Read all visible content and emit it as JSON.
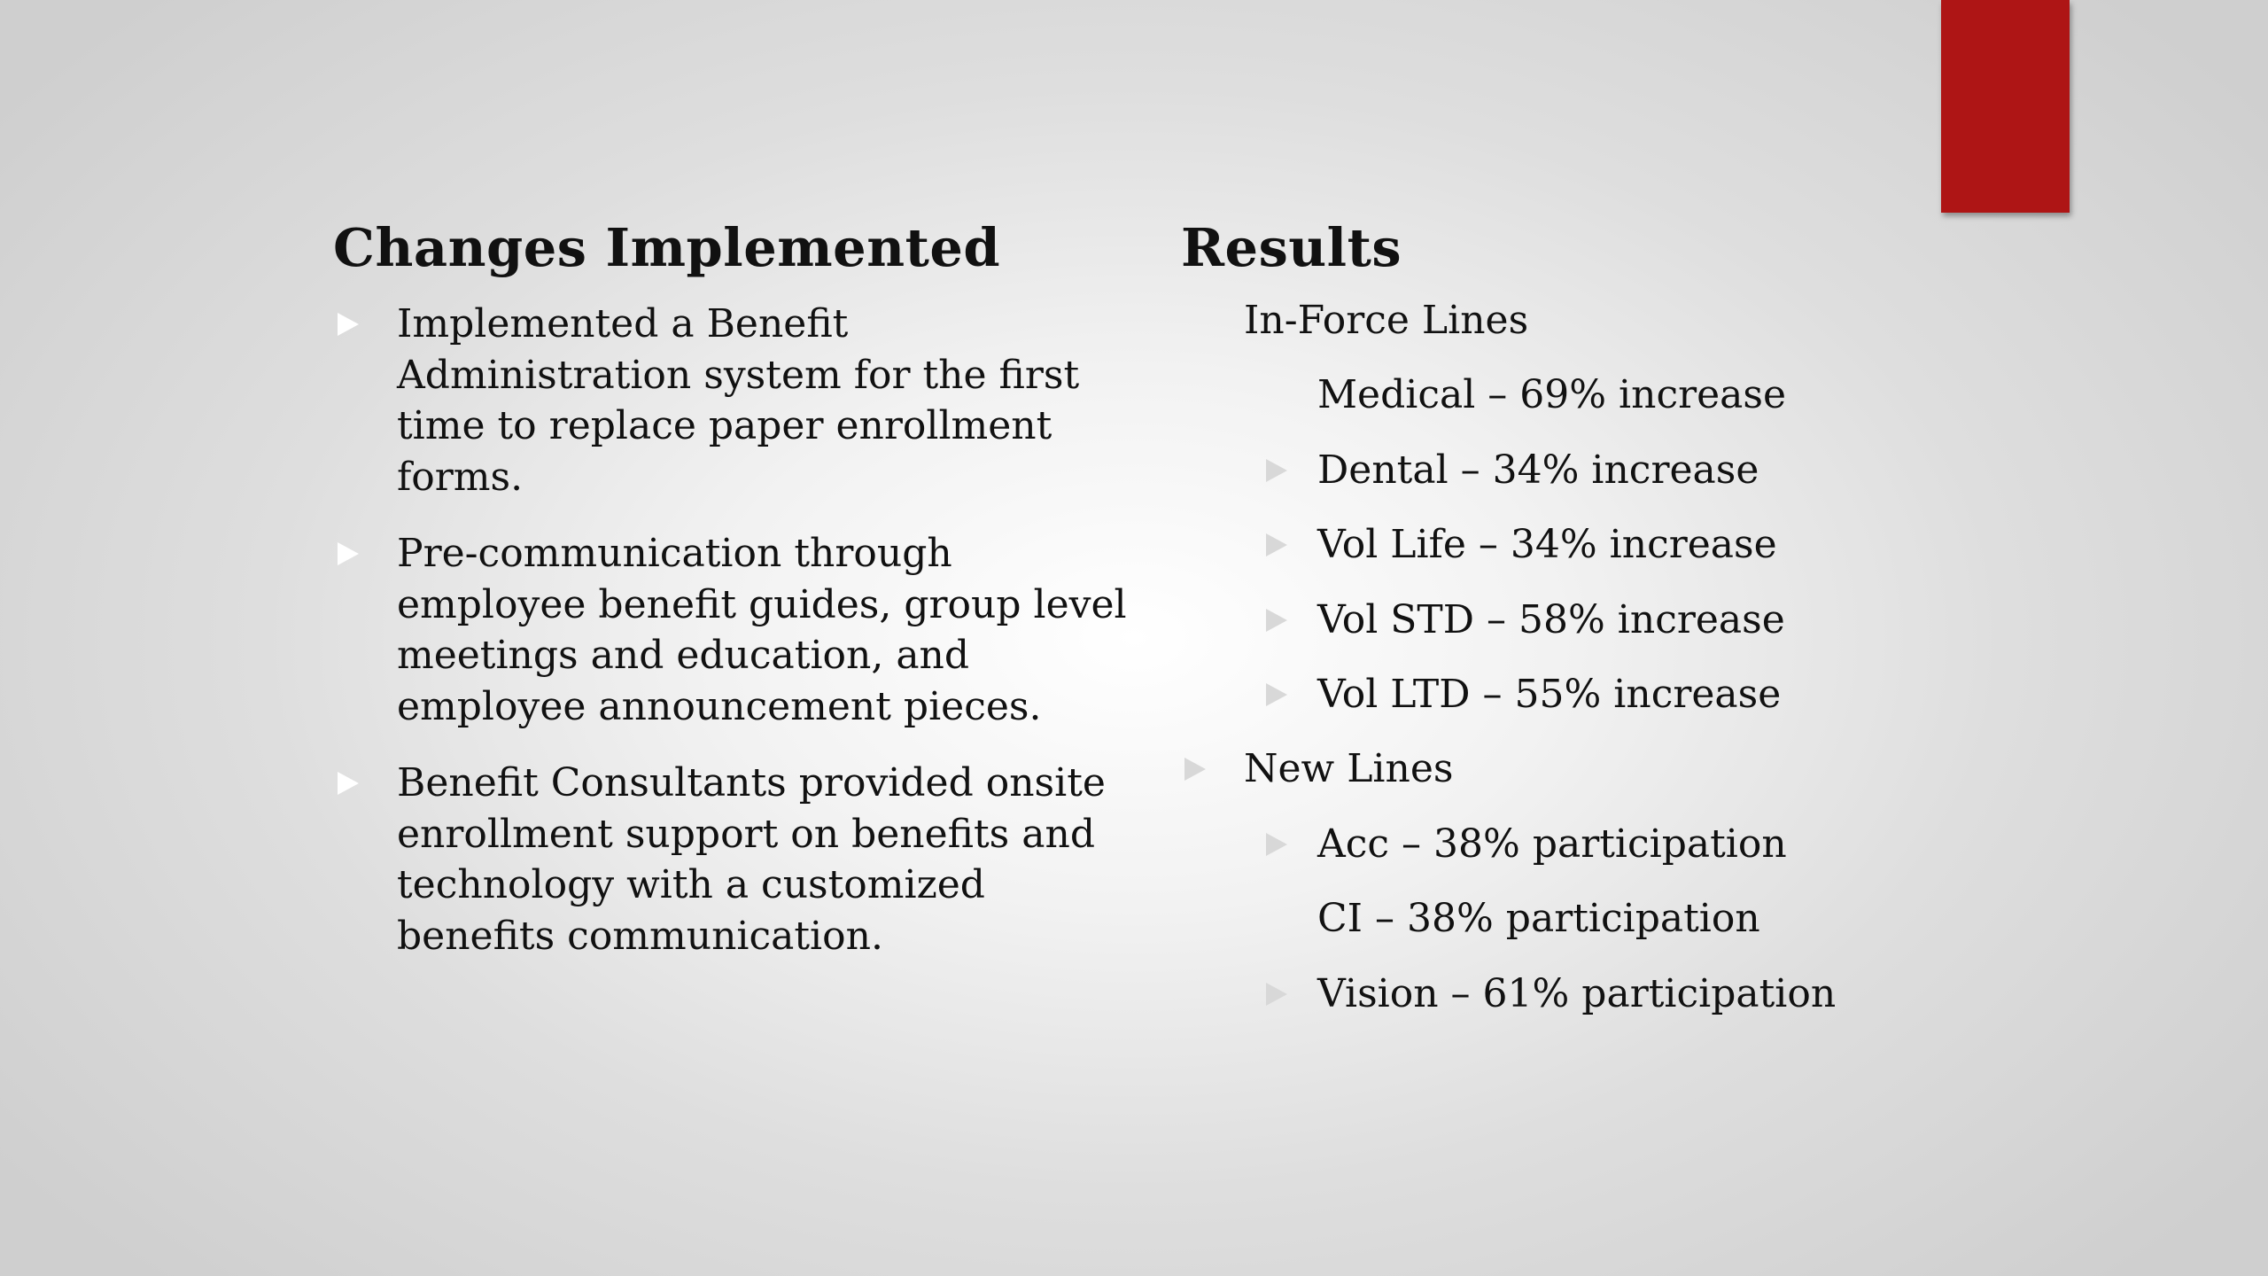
{
  "colors": {
    "accent": "#ae1515",
    "bullet_left": "#ffffff",
    "bullet_right": "#d8d8d8",
    "text": "#111111"
  },
  "left_column": {
    "heading": "Changes Implemented",
    "bullets": [
      "Implemented a Benefit Administration system for the first time to replace paper enrollment forms.",
      "Pre-communication through employee benefit guides, group level meetings and education, and employee announcement pieces.",
      "Benefit Consultants provided onsite enrollment support on benefits and technology with a customized benefits communication."
    ]
  },
  "right_column": {
    "heading": "Results",
    "sections": [
      {
        "label": "In-Force Lines",
        "items": [
          "Medical – 69% increase",
          "Dental – 34% increase",
          "Vol Life – 34% increase",
          "Vol STD – 58% increase",
          "Vol LTD – 55% increase"
        ]
      },
      {
        "label": "New Lines",
        "items": [
          "Acc – 38% participation",
          "CI – 38% participation",
          "Vision – 61% participation"
        ]
      }
    ]
  }
}
